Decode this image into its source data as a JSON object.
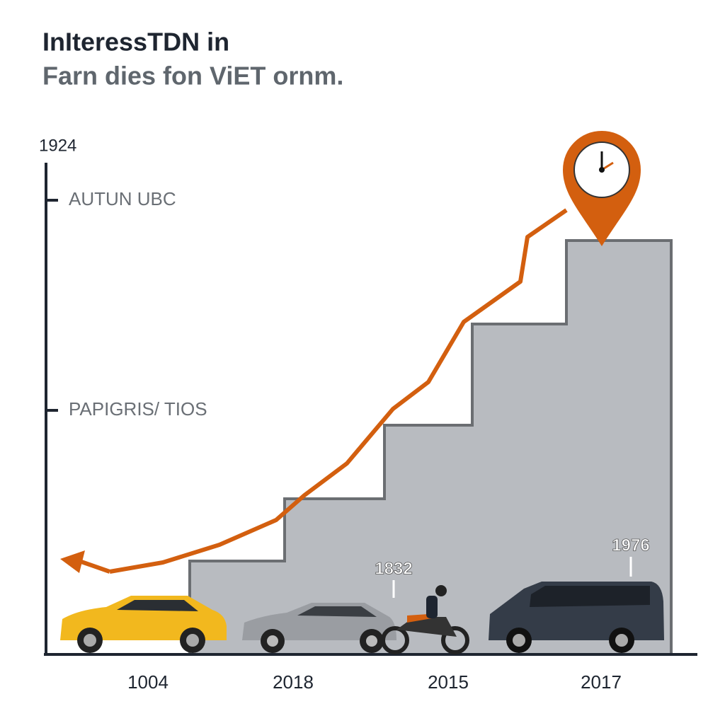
{
  "header": {
    "title": "InIteressTDN in",
    "subtitle": "Farn dies fon ViET ornm."
  },
  "axis": {
    "top_label": "1924",
    "levels": [
      "AUTUN UBC",
      "PAPIGRIS/ TIOS"
    ]
  },
  "categories": [
    "1004",
    "2018",
    "2015",
    "2017"
  ],
  "annotations": [
    "1832",
    "1976"
  ]
}
